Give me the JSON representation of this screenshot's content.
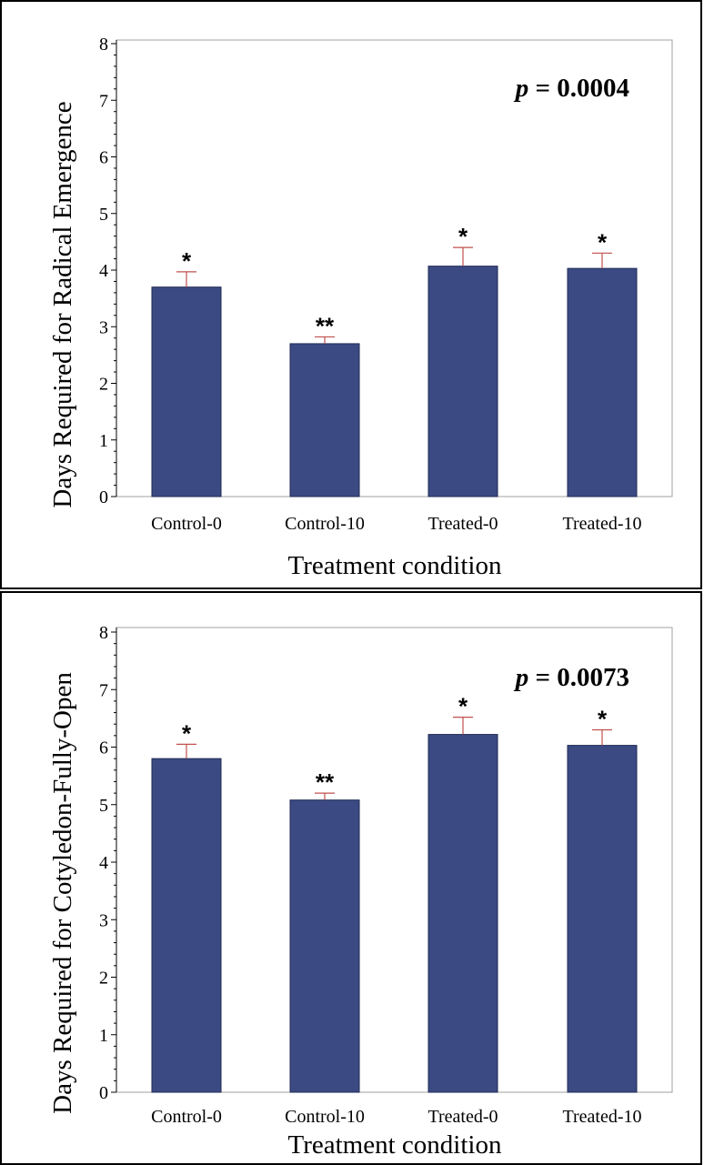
{
  "chart_data": [
    {
      "type": "bar",
      "title": "",
      "xlabel": "Treatment condition",
      "ylabel": "Days Required for Radical Emergence",
      "categories": [
        "Control-0",
        "Control-10",
        "Treated-0",
        "Treated-10"
      ],
      "values": [
        3.7,
        2.7,
        4.07,
        4.03
      ],
      "error_upper": [
        0.27,
        0.12,
        0.33,
        0.27
      ],
      "significance": [
        "*",
        "**",
        "*",
        "*"
      ],
      "annotation": {
        "p_symbol": "p",
        "p_text": " = 0.0004"
      },
      "ylim": [
        0,
        8
      ],
      "yticks": [
        "0",
        "1",
        "2",
        "3",
        "4",
        "5",
        "6",
        "7",
        "8"
      ],
      "grid": false,
      "bar_color": "#3b4a82",
      "error_color": "#c0504d"
    },
    {
      "type": "bar",
      "title": "",
      "xlabel": "Treatment condition",
      "ylabel": "Days Required for Cotyledon-Fully-Open",
      "categories": [
        "Control-0",
        "Control-10",
        "Treated-0",
        "Treated-10"
      ],
      "values": [
        5.8,
        5.08,
        6.22,
        6.03
      ],
      "error_upper": [
        0.25,
        0.12,
        0.3,
        0.27
      ],
      "significance": [
        "*",
        "**",
        "*",
        "*"
      ],
      "annotation": {
        "p_symbol": "p",
        "p_text": " = 0.0073"
      },
      "ylim": [
        0,
        8
      ],
      "yticks": [
        "0",
        "1",
        "2",
        "3",
        "4",
        "5",
        "6",
        "7",
        "8"
      ],
      "grid": false,
      "bar_color": "#3b4a82",
      "error_color": "#c0504d"
    }
  ]
}
